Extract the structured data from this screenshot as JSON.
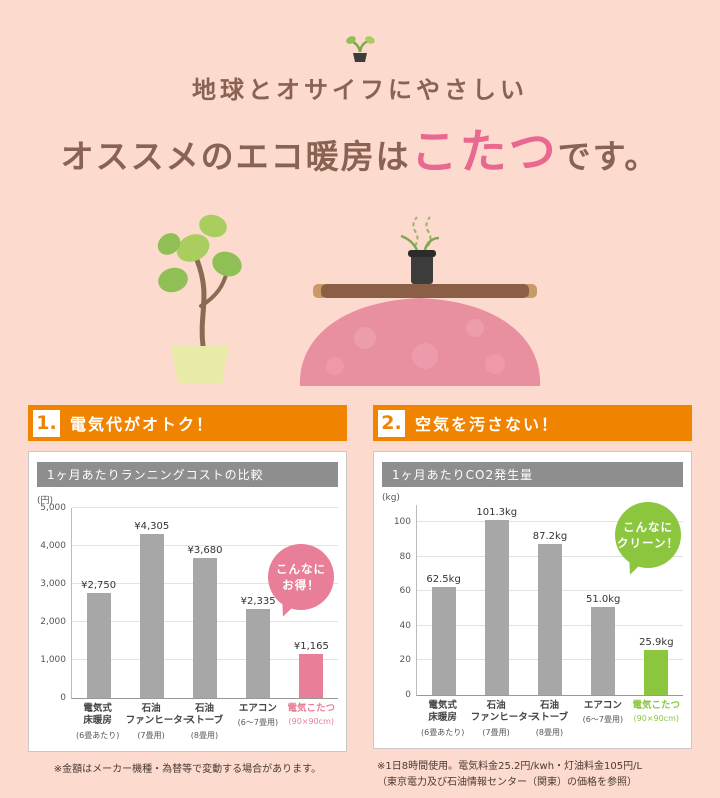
{
  "page": {
    "bg_color": "#fcdacd",
    "accent_orange": "#f08300",
    "accent_pink": "#e87e97",
    "accent_green": "#8cc63f"
  },
  "icons": {
    "top": "sprout-icon",
    "illustration": "plant-and-kotatsu-illustration"
  },
  "header": {
    "line1": "地球とオサイフにやさしい",
    "line2_pre": "オススメのエコ暖房は",
    "line2_highlight": "こたつ",
    "line2_post": "です。"
  },
  "sections": [
    {
      "number": "1.",
      "heading": "電気代がオトク！",
      "footnote_lines": [
        "※金額はメーカー機種・為替等で変動する場合があります。"
      ]
    },
    {
      "number": "2.",
      "heading": "空気を汚さない！",
      "footnote_lines": [
        "※1日8時間使用。電気料金25.2円/kwh・灯油料金105円/L",
        "（東京電力及び石油情報センター（関東）の価格を参照）"
      ]
    }
  ],
  "chart_data": [
    {
      "type": "bar",
      "title": "1ヶ月あたりランニングコストの比較",
      "unit": "(円)",
      "ylabel": "円",
      "ylim": [
        0,
        5000
      ],
      "axis_max": 5000,
      "grid": true,
      "ticks": [
        {
          "value": 0,
          "label": "0"
        },
        {
          "value": 1000,
          "label": "1,000"
        },
        {
          "value": 2000,
          "label": "2,000"
        },
        {
          "value": 3000,
          "label": "3,000"
        },
        {
          "value": 4000,
          "label": "4,000"
        },
        {
          "value": 5000,
          "label": "5,000"
        }
      ],
      "categories": [
        "電気式床暖房",
        "石油ファンヒーター",
        "石油ストーブ",
        "エアコン",
        "電気こたつ"
      ],
      "values": [
        2750,
        4305,
        3680,
        2335,
        1165
      ],
      "bars": [
        {
          "label_lines": [
            "電気式",
            "床暖房"
          ],
          "note": "(6畳あたり)",
          "value": 2750,
          "value_label": "¥2,750",
          "highlight": false
        },
        {
          "label_lines": [
            "石油",
            "ファンヒーター"
          ],
          "note": "(7畳用)",
          "value": 4305,
          "value_label": "¥4,305",
          "highlight": false
        },
        {
          "label_lines": [
            "石油",
            "ストーブ"
          ],
          "note": "(8畳用)",
          "value": 3680,
          "value_label": "¥3,680",
          "highlight": false
        },
        {
          "label_lines": [
            "エアコン"
          ],
          "note": "(6〜7畳用)",
          "value": 2335,
          "value_label": "¥2,335",
          "highlight": false
        },
        {
          "label_lines": [
            "電気こたつ"
          ],
          "note": "(90×90cm)",
          "value": 1165,
          "value_label": "¥1,165",
          "highlight": true
        }
      ],
      "colors": {
        "bar": "#a7a7a7",
        "highlight": "#e87e97"
      },
      "badge": {
        "lines": [
          "こんなに",
          "お得！"
        ],
        "color": "#e87e97"
      }
    },
    {
      "type": "bar",
      "title": "1ヶ月あたりCO2発生量",
      "unit": "(kg)",
      "ylabel": "kg",
      "ylim": [
        0,
        100
      ],
      "axis_max": 110,
      "grid": true,
      "ticks": [
        {
          "value": 0,
          "label": "0"
        },
        {
          "value": 20,
          "label": "20"
        },
        {
          "value": 40,
          "label": "40"
        },
        {
          "value": 60,
          "label": "60"
        },
        {
          "value": 80,
          "label": "80"
        },
        {
          "value": 100,
          "label": "100"
        }
      ],
      "categories": [
        "電気式床暖房",
        "石油ファンヒーター",
        "石油ストーブ",
        "エアコン",
        "電気こたつ"
      ],
      "values": [
        62.5,
        101.3,
        87.2,
        51.0,
        25.9
      ],
      "bars": [
        {
          "label_lines": [
            "電気式",
            "床暖房"
          ],
          "note": "(6畳あたり)",
          "value": 62.5,
          "value_label": "62.5kg",
          "highlight": false
        },
        {
          "label_lines": [
            "石油",
            "ファンヒーター"
          ],
          "note": "(7畳用)",
          "value": 101.3,
          "value_label": "101.3kg",
          "highlight": false
        },
        {
          "label_lines": [
            "石油",
            "ストーブ"
          ],
          "note": "(8畳用)",
          "value": 87.2,
          "value_label": "87.2kg",
          "highlight": false
        },
        {
          "label_lines": [
            "エアコン"
          ],
          "note": "(6〜7畳用)",
          "value": 51.0,
          "value_label": "51.0kg",
          "highlight": false
        },
        {
          "label_lines": [
            "電気こたつ"
          ],
          "note": "(90×90cm)",
          "value": 25.9,
          "value_label": "25.9kg",
          "highlight": true
        }
      ],
      "colors": {
        "bar": "#a7a7a7",
        "highlight": "#8cc63f"
      },
      "badge": {
        "lines": [
          "こんなに",
          "クリーン！"
        ],
        "color": "#8cc63f"
      }
    }
  ]
}
